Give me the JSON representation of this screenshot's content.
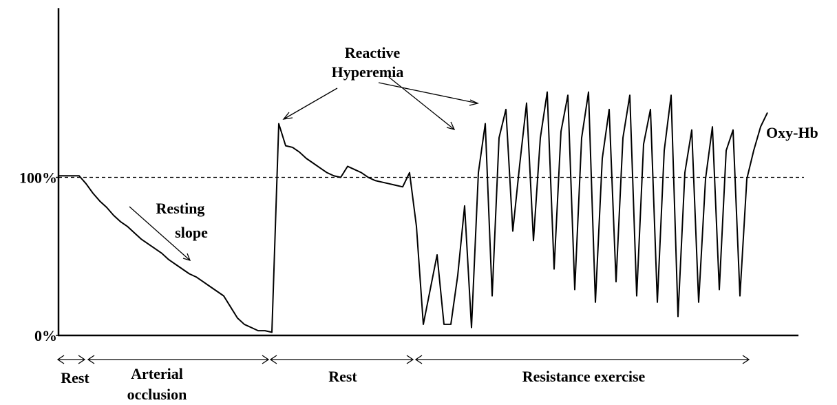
{
  "chart_data": {
    "type": "line",
    "categories": [
      null,
      null,
      null,
      null,
      null,
      null,
      null,
      null,
      null,
      null,
      null,
      null,
      null,
      null,
      null,
      null,
      null,
      null,
      null,
      null,
      null,
      null,
      null,
      null,
      null,
      null,
      null,
      null,
      null,
      null,
      null,
      null,
      null,
      null,
      null,
      null,
      null,
      null,
      null,
      null,
      null,
      null,
      null,
      null,
      null,
      null,
      null,
      null,
      null,
      null,
      null,
      null,
      null,
      null,
      null,
      null,
      null,
      null,
      null,
      null,
      null,
      null,
      null,
      null,
      null,
      null,
      null,
      null,
      null,
      null,
      null,
      null,
      null,
      null,
      null,
      null,
      null,
      null,
      null,
      null,
      null,
      null,
      null,
      null,
      null,
      null,
      null,
      null,
      null,
      null,
      null,
      null,
      null,
      null,
      null,
      null,
      null,
      null,
      null,
      null,
      null,
      null,
      null,
      null
    ],
    "series": [
      {
        "name": "Oxy-Hb",
        "color": "#000000",
        "values": [
          101,
          101,
          101,
          101,
          96,
          90,
          85,
          81,
          76,
          72,
          69,
          65,
          61,
          58,
          55,
          52,
          48,
          45,
          42,
          39,
          37,
          34,
          31,
          28,
          25,
          18,
          11,
          7,
          5,
          3,
          3,
          2,
          134,
          120,
          119,
          116,
          112,
          109,
          106,
          103,
          101,
          100,
          107,
          105,
          103,
          100,
          98,
          97,
          96,
          95,
          94,
          103,
          69,
          7,
          29,
          51,
          7,
          7,
          38,
          82,
          5,
          103,
          134,
          25,
          125,
          143,
          66,
          108,
          147,
          60,
          125,
          154,
          42,
          129,
          152,
          29,
          125,
          154,
          21,
          112,
          143,
          34,
          125,
          152,
          25,
          121,
          143,
          21,
          117,
          152,
          12,
          103,
          130,
          21,
          99,
          132,
          29,
          117,
          130,
          25,
          99,
          117,
          132,
          141
        ]
      }
    ],
    "ylim": [
      0,
      207
    ],
    "yticks": [
      {
        "value": 0,
        "label": "0%"
      },
      {
        "value": 100,
        "label": "100%"
      }
    ],
    "reference_line": 100,
    "annotations": [
      [
        "Reactive",
        "Hyperemia"
      ],
      [
        "Resting",
        "slope"
      ]
    ],
    "phases": [
      "Rest",
      [
        "Arterial",
        "occlusion"
      ],
      "Rest",
      "Resistance exercise"
    ]
  }
}
